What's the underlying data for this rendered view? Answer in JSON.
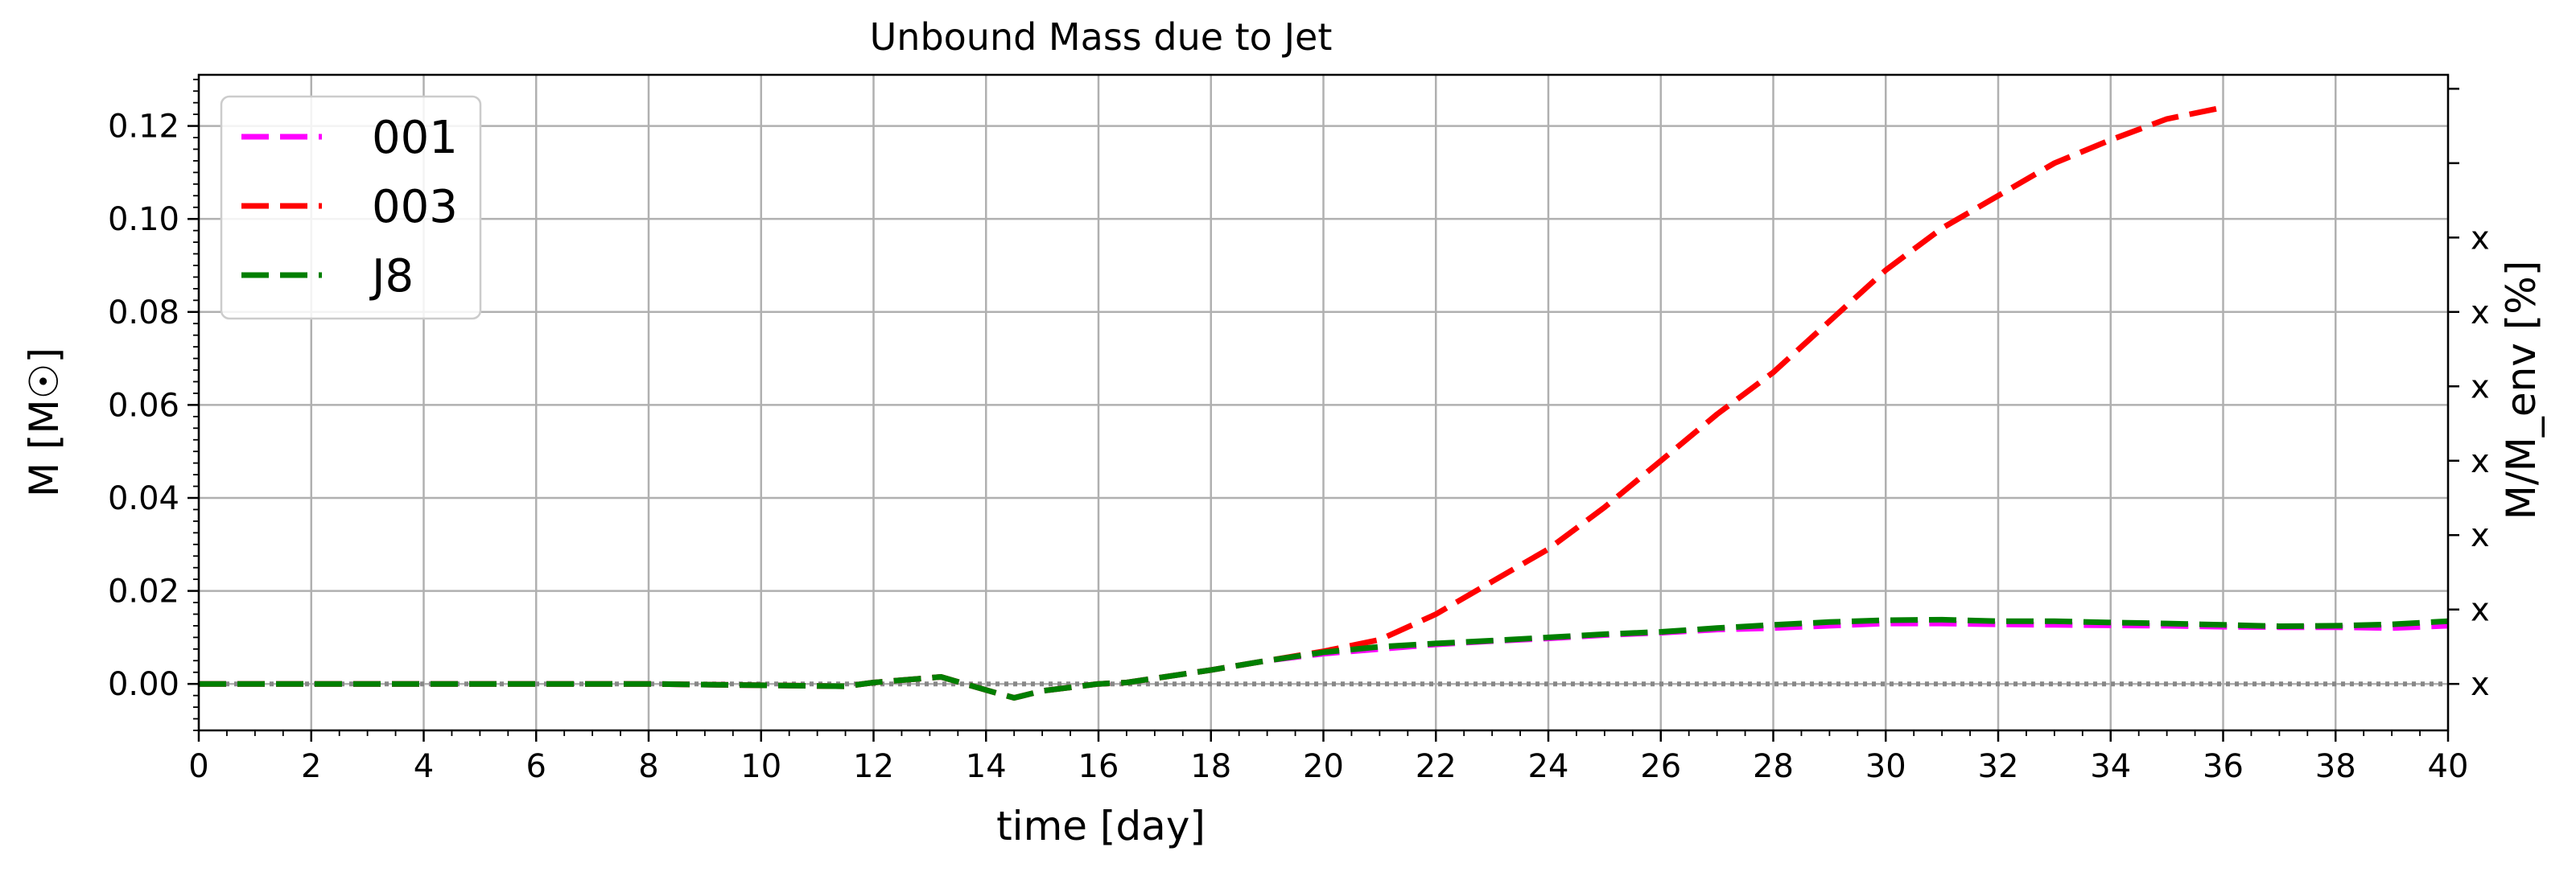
{
  "chart_data": {
    "type": "line",
    "title": "Unbound Mass due to Jet",
    "xlabel": "time [day]",
    "ylabel": "M [M☉]",
    "ylabel_right": "M/M_env [%]",
    "xlim": [
      0,
      40
    ],
    "ylim": [
      -0.01,
      0.131
    ],
    "x_ticks": [
      0,
      2,
      4,
      6,
      8,
      10,
      12,
      14,
      16,
      18,
      20,
      22,
      24,
      26,
      28,
      30,
      32,
      34,
      36,
      38,
      40
    ],
    "y_ticks": [
      0.0,
      0.02,
      0.04,
      0.06,
      0.08,
      0.1,
      0.12
    ],
    "x_tick_labels": [
      "0",
      "2",
      "4",
      "6",
      "8",
      "10",
      "12",
      "14",
      "16",
      "18",
      "20",
      "22",
      "24",
      "26",
      "28",
      "30",
      "32",
      "34",
      "36",
      "38",
      "40"
    ],
    "y_tick_labels": [
      "0.00",
      "0.02",
      "0.04",
      "0.06",
      "0.08",
      "0.10",
      "0.12"
    ],
    "right_ticks": [
      0.0,
      0.016,
      0.032,
      0.048,
      0.064,
      0.08,
      0.096,
      0.112,
      0.128
    ],
    "right_tick_labels": [
      "x",
      "x",
      "x",
      "x",
      "x",
      "x",
      "x",
      "",
      ""
    ],
    "grid": true,
    "legend_position": "top-left",
    "reference_line": {
      "y": 0,
      "color": "#888888",
      "style": "dotted"
    },
    "series": [
      {
        "name": "001",
        "color": "#ff00ff",
        "x": [
          0,
          4,
          8,
          10,
          11.5,
          12,
          13.2,
          14.2,
          14.5,
          15,
          16,
          16.5,
          17,
          18,
          19,
          20,
          21,
          22,
          23,
          24,
          25,
          26,
          27,
          28,
          29,
          30,
          31,
          32,
          33,
          34,
          35,
          36,
          37,
          38,
          39,
          40
        ],
        "y": [
          0.0,
          0.0,
          0.0,
          -0.0003,
          -0.0005,
          0.0003,
          0.0015,
          -0.002,
          -0.003,
          -0.0015,
          0.0,
          0.0003,
          0.0012,
          0.003,
          0.005,
          0.0065,
          0.0075,
          0.0085,
          0.0092,
          0.0098,
          0.0105,
          0.011,
          0.0117,
          0.012,
          0.0125,
          0.013,
          0.013,
          0.0128,
          0.0127,
          0.0126,
          0.0125,
          0.0123,
          0.0122,
          0.0122,
          0.012,
          0.0125
        ]
      },
      {
        "name": "003",
        "color": "#ff0000",
        "x": [
          0,
          4,
          8,
          10,
          11.5,
          12,
          13.2,
          14.2,
          14.5,
          15,
          16,
          16.5,
          17,
          18,
          19,
          20,
          21,
          22,
          23,
          24,
          25,
          26,
          27,
          28,
          29,
          30,
          31,
          32,
          33,
          34,
          35,
          36
        ],
        "y": [
          0.0,
          0.0,
          0.0,
          -0.0003,
          -0.0005,
          0.0003,
          0.0015,
          -0.002,
          -0.003,
          -0.0015,
          0.0,
          0.0003,
          0.0012,
          0.003,
          0.005,
          0.007,
          0.0095,
          0.015,
          0.022,
          0.029,
          0.038,
          0.048,
          0.058,
          0.067,
          0.078,
          0.089,
          0.098,
          0.105,
          0.112,
          0.117,
          0.1215,
          0.124
        ]
      },
      {
        "name": "J8",
        "color": "#007f00",
        "x": [
          0,
          4,
          8,
          10,
          11.5,
          12,
          13.2,
          14.2,
          14.5,
          15,
          16,
          16.5,
          17,
          18,
          19,
          20,
          21,
          22,
          23,
          24,
          25,
          26,
          27,
          28,
          29,
          30,
          31,
          32,
          33,
          34,
          35,
          36,
          37,
          38,
          39,
          40
        ],
        "y": [
          0.0,
          0.0,
          0.0,
          -0.0003,
          -0.0005,
          0.0003,
          0.0015,
          -0.002,
          -0.003,
          -0.0015,
          0.0,
          0.0003,
          0.0012,
          0.003,
          0.005,
          0.0068,
          0.008,
          0.0087,
          0.0093,
          0.01,
          0.0107,
          0.0112,
          0.012,
          0.0127,
          0.0133,
          0.0137,
          0.0138,
          0.0135,
          0.0135,
          0.0132,
          0.013,
          0.0127,
          0.0124,
          0.0125,
          0.0128,
          0.0135
        ]
      }
    ]
  }
}
